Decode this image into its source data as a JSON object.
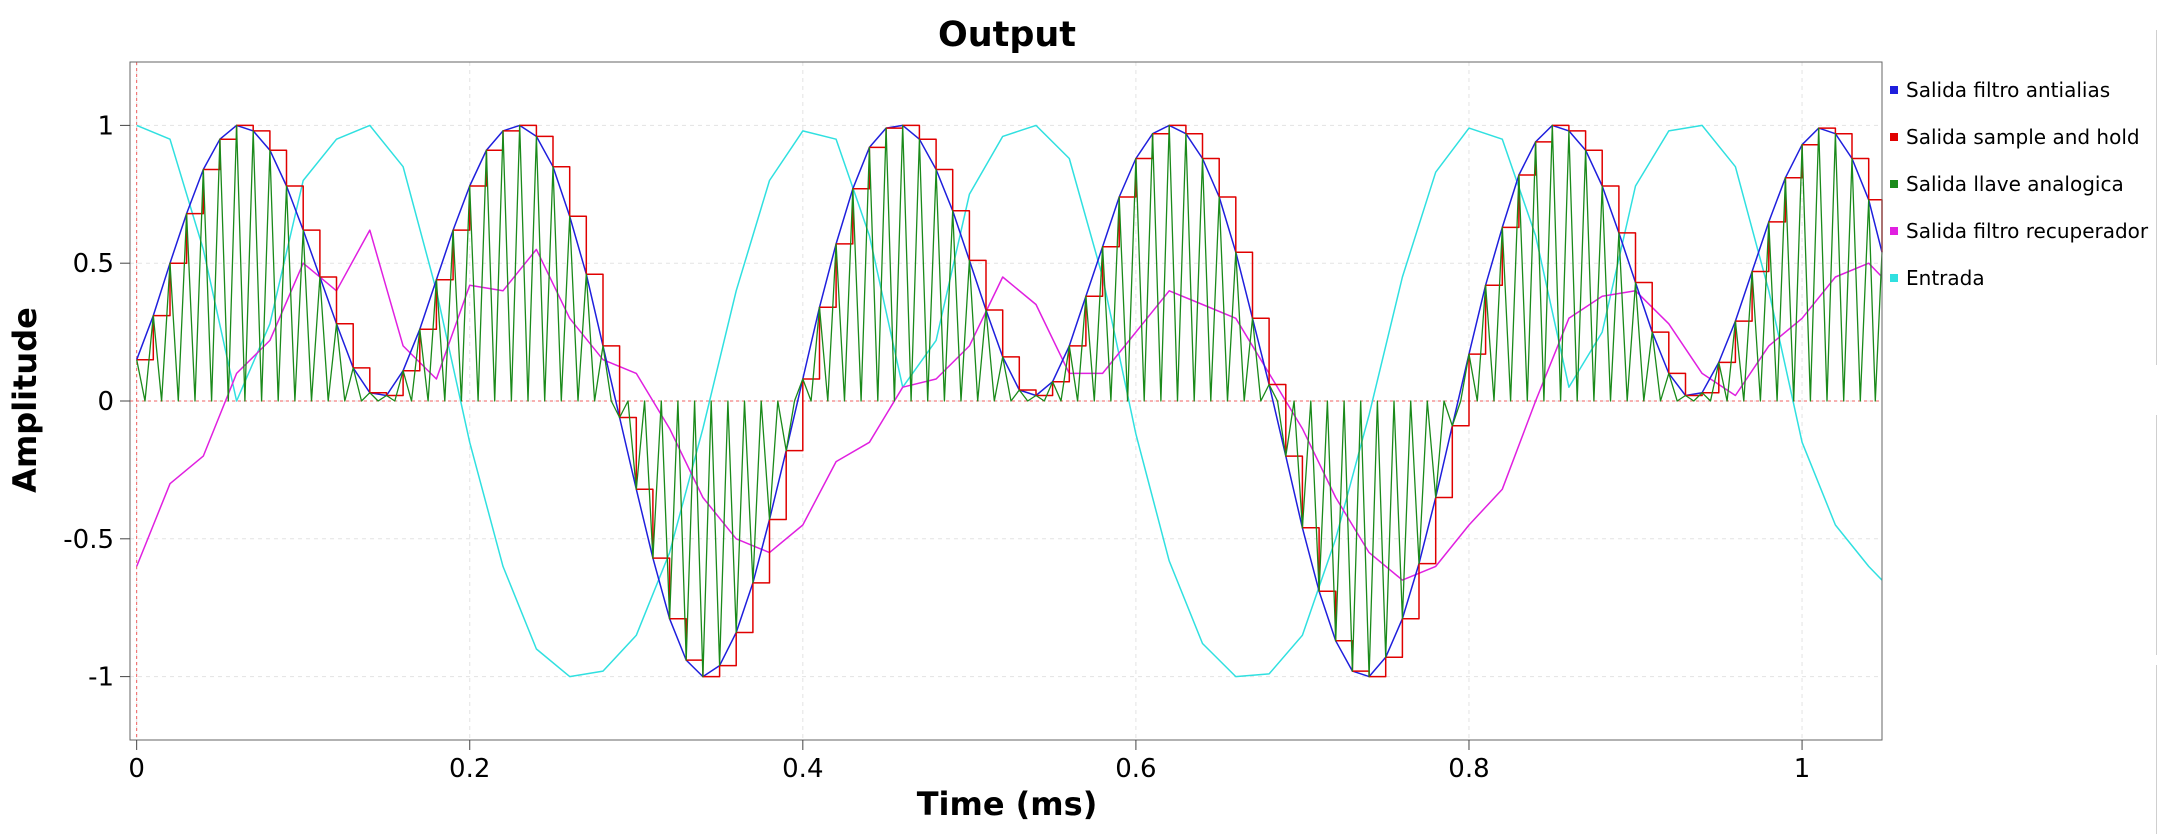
{
  "chart_data": {
    "type": "line",
    "title": "Output",
    "xlabel": "Time (ms)",
    "ylabel": "Amplitude",
    "xlim": [
      -0.004,
      1.048
    ],
    "ylim": [
      -1.23,
      1.23
    ],
    "x_ticks": [
      0,
      0.2,
      0.4,
      0.6,
      0.8,
      1
    ],
    "x_tick_labels": [
      "0",
      "0.2",
      "0.4",
      "0.6",
      "0.8",
      "1"
    ],
    "y_ticks": [
      1,
      0.5,
      0,
      -0.5,
      -1
    ],
    "y_tick_labels": [
      "1",
      "0.5",
      "0",
      "-0.5",
      "-1"
    ],
    "grid": true,
    "legend_position": "right",
    "series": [
      {
        "name": "Salida filtro antialias",
        "color": "#1f1fdd",
        "x": [
          0,
          0.01,
          0.02,
          0.03,
          0.04,
          0.05,
          0.06,
          0.07,
          0.08,
          0.09,
          0.1,
          0.11,
          0.12,
          0.13,
          0.14,
          0.15,
          0.16,
          0.17,
          0.18,
          0.19,
          0.2,
          0.21,
          0.22,
          0.23,
          0.24,
          0.25,
          0.26,
          0.27,
          0.28,
          0.29,
          0.3,
          0.31,
          0.32,
          0.33,
          0.34,
          0.35,
          0.36,
          0.37,
          0.38,
          0.39,
          0.4,
          0.41,
          0.42,
          0.43,
          0.44,
          0.45,
          0.46,
          0.47,
          0.48,
          0.49,
          0.5,
          0.51,
          0.52,
          0.53,
          0.54,
          0.55,
          0.56,
          0.57,
          0.58,
          0.59,
          0.6,
          0.61,
          0.62,
          0.63,
          0.64,
          0.65,
          0.66,
          0.67,
          0.68,
          0.69,
          0.7,
          0.71,
          0.72,
          0.73,
          0.74,
          0.75,
          0.76,
          0.77,
          0.78,
          0.79,
          0.8,
          0.81,
          0.82,
          0.83,
          0.84,
          0.85,
          0.86,
          0.87,
          0.88,
          0.89,
          0.9,
          0.91,
          0.92,
          0.93,
          0.94,
          0.95,
          0.96,
          0.97,
          0.98,
          0.99,
          1,
          1.01,
          1.02,
          1.03,
          1.04,
          1.048
        ],
        "y": [
          0.15,
          0.31,
          0.5,
          0.68,
          0.84,
          0.95,
          1,
          0.98,
          0.91,
          0.78,
          0.62,
          0.45,
          0.28,
          0.12,
          0.03,
          0.02,
          0.11,
          0.26,
          0.44,
          0.62,
          0.78,
          0.91,
          0.98,
          1,
          0.96,
          0.85,
          0.67,
          0.46,
          0.2,
          -0.06,
          -0.32,
          -0.57,
          -0.79,
          -0.94,
          -1,
          -0.96,
          -0.84,
          -0.66,
          -0.43,
          -0.18,
          0.08,
          0.34,
          0.57,
          0.77,
          0.92,
          0.99,
          1,
          0.95,
          0.84,
          0.69,
          0.51,
          0.33,
          0.16,
          0.04,
          0.02,
          0.07,
          0.2,
          0.38,
          0.56,
          0.74,
          0.88,
          0.97,
          1,
          0.97,
          0.88,
          0.74,
          0.54,
          0.3,
          0.06,
          -0.2,
          -0.46,
          -0.69,
          -0.87,
          -0.98,
          -1,
          -0.93,
          -0.79,
          -0.59,
          -0.35,
          -0.09,
          0.17,
          0.42,
          0.63,
          0.82,
          0.94,
          1,
          0.98,
          0.91,
          0.78,
          0.61,
          0.43,
          0.25,
          0.1,
          0.02,
          0.03,
          0.14,
          0.29,
          0.47,
          0.65,
          0.81,
          0.93,
          0.99,
          0.97,
          0.88,
          0.73,
          0.54
        ]
      },
      {
        "name": "Salida sample and hold",
        "color": "#e00000",
        "x": [
          0,
          0.01,
          0.02,
          0.03,
          0.04,
          0.05,
          0.06,
          0.07,
          0.08,
          0.09,
          0.1,
          0.11,
          0.12,
          0.13,
          0.14,
          0.15,
          0.16,
          0.17,
          0.18,
          0.19,
          0.2,
          0.21,
          0.22,
          0.23,
          0.24,
          0.25,
          0.26,
          0.27,
          0.28,
          0.29,
          0.3,
          0.31,
          0.32,
          0.33,
          0.34,
          0.35,
          0.36,
          0.37,
          0.38,
          0.39,
          0.4,
          0.41,
          0.42,
          0.43,
          0.44,
          0.45,
          0.46,
          0.47,
          0.48,
          0.49,
          0.5,
          0.51,
          0.52,
          0.53,
          0.54,
          0.55,
          0.56,
          0.57,
          0.58,
          0.59,
          0.6,
          0.61,
          0.62,
          0.63,
          0.64,
          0.65,
          0.66,
          0.67,
          0.68,
          0.69,
          0.7,
          0.71,
          0.72,
          0.73,
          0.74,
          0.75,
          0.76,
          0.77,
          0.78,
          0.79,
          0.8,
          0.81,
          0.82,
          0.83,
          0.84,
          0.85,
          0.86,
          0.87,
          0.88,
          0.89,
          0.9,
          0.91,
          0.92,
          0.93,
          0.94,
          0.95,
          0.96,
          0.97,
          0.98,
          0.99,
          1,
          1.01,
          1.02,
          1.03,
          1.04,
          1.048
        ],
        "y": [
          0.15,
          0.31,
          0.5,
          0.68,
          0.84,
          0.95,
          1,
          0.98,
          0.91,
          0.78,
          0.62,
          0.45,
          0.28,
          0.12,
          0.03,
          0.02,
          0.11,
          0.26,
          0.44,
          0.62,
          0.78,
          0.91,
          0.98,
          1,
          0.96,
          0.85,
          0.67,
          0.46,
          0.2,
          -0.06,
          -0.32,
          -0.57,
          -0.79,
          -0.94,
          -1,
          -0.96,
          -0.84,
          -0.66,
          -0.43,
          -0.18,
          0.08,
          0.34,
          0.57,
          0.77,
          0.92,
          0.99,
          1,
          0.95,
          0.84,
          0.69,
          0.51,
          0.33,
          0.16,
          0.04,
          0.02,
          0.07,
          0.2,
          0.38,
          0.56,
          0.74,
          0.88,
          0.97,
          1,
          0.97,
          0.88,
          0.74,
          0.54,
          0.3,
          0.06,
          -0.2,
          -0.46,
          -0.69,
          -0.87,
          -0.98,
          -1,
          -0.93,
          -0.79,
          -0.59,
          -0.35,
          -0.09,
          0.17,
          0.42,
          0.63,
          0.82,
          0.94,
          1,
          0.98,
          0.91,
          0.78,
          0.61,
          0.43,
          0.25,
          0.1,
          0.02,
          0.03,
          0.14,
          0.29,
          0.47,
          0.65,
          0.81,
          0.93,
          0.99,
          0.97,
          0.88,
          0.73,
          0.54
        ]
      },
      {
        "name": "Salida llave analogica",
        "color": "#1a8a1a",
        "x": [
          0,
          0.01,
          0.02,
          0.03,
          0.04,
          0.05,
          0.06,
          0.07,
          0.08,
          0.09,
          0.1,
          0.11,
          0.12,
          0.13,
          0.14,
          0.15,
          0.16,
          0.17,
          0.18,
          0.19,
          0.2,
          0.21,
          0.22,
          0.23,
          0.24,
          0.25,
          0.26,
          0.27,
          0.28,
          0.29,
          0.3,
          0.31,
          0.32,
          0.33,
          0.34,
          0.35,
          0.36,
          0.37,
          0.38,
          0.39,
          0.4,
          0.41,
          0.42,
          0.43,
          0.44,
          0.45,
          0.46,
          0.47,
          0.48,
          0.49,
          0.5,
          0.51,
          0.52,
          0.53,
          0.54,
          0.55,
          0.56,
          0.57,
          0.58,
          0.59,
          0.6,
          0.61,
          0.62,
          0.63,
          0.64,
          0.65,
          0.66,
          0.67,
          0.68,
          0.69,
          0.7,
          0.71,
          0.72,
          0.73,
          0.74,
          0.75,
          0.76,
          0.77,
          0.78,
          0.79,
          0.8,
          0.81,
          0.82,
          0.83,
          0.84,
          0.85,
          0.86,
          0.87,
          0.88,
          0.89,
          0.9,
          0.91,
          0.92,
          0.93,
          0.94,
          0.95,
          0.96,
          0.97,
          0.98,
          0.99,
          1,
          1.01,
          1.02,
          1.03,
          1.04,
          1.048
        ],
        "y": [
          0.15,
          0.31,
          0.5,
          0.68,
          0.84,
          0.95,
          1,
          0.98,
          0.91,
          0.78,
          0.62,
          0.45,
          0.28,
          0.12,
          0.03,
          0.02,
          0.11,
          0.26,
          0.44,
          0.62,
          0.78,
          0.91,
          0.98,
          1,
          0.96,
          0.85,
          0.67,
          0.46,
          0.2,
          -0.06,
          -0.32,
          -0.57,
          -0.79,
          -0.94,
          -1,
          -0.96,
          -0.84,
          -0.66,
          -0.43,
          -0.18,
          0.08,
          0.34,
          0.57,
          0.77,
          0.92,
          0.99,
          1,
          0.95,
          0.84,
          0.69,
          0.51,
          0.33,
          0.16,
          0.04,
          0.02,
          0.07,
          0.2,
          0.38,
          0.56,
          0.74,
          0.88,
          0.97,
          1,
          0.97,
          0.88,
          0.74,
          0.54,
          0.3,
          0.06,
          -0.2,
          -0.46,
          -0.69,
          -0.87,
          -0.98,
          -1,
          -0.93,
          -0.79,
          -0.59,
          -0.35,
          -0.09,
          0.17,
          0.42,
          0.63,
          0.82,
          0.94,
          1,
          0.98,
          0.91,
          0.78,
          0.61,
          0.43,
          0.25,
          0.1,
          0.02,
          0.03,
          0.14,
          0.29,
          0.47,
          0.65,
          0.81,
          0.93,
          0.99,
          0.97,
          0.88,
          0.73,
          0.54
        ]
      },
      {
        "name": "Salida filtro recuperador",
        "color": "#e020e0",
        "x": [
          0,
          0.02,
          0.04,
          0.06,
          0.08,
          0.1,
          0.12,
          0.14,
          0.16,
          0.18,
          0.2,
          0.22,
          0.24,
          0.26,
          0.28,
          0.3,
          0.32,
          0.34,
          0.36,
          0.38,
          0.4,
          0.42,
          0.44,
          0.46,
          0.48,
          0.5,
          0.52,
          0.54,
          0.56,
          0.58,
          0.6,
          0.62,
          0.64,
          0.66,
          0.68,
          0.7,
          0.72,
          0.74,
          0.76,
          0.78,
          0.8,
          0.82,
          0.84,
          0.86,
          0.88,
          0.9,
          0.92,
          0.94,
          0.96,
          0.98,
          1,
          1.02,
          1.04,
          1.048
        ],
        "y": [
          -0.6,
          -0.3,
          -0.2,
          0.1,
          0.22,
          0.5,
          0.4,
          0.62,
          0.2,
          0.08,
          0.42,
          0.4,
          0.55,
          0.3,
          0.15,
          0.1,
          -0.1,
          -0.35,
          -0.5,
          -0.55,
          -0.45,
          -0.22,
          -0.15,
          0.05,
          0.08,
          0.2,
          0.45,
          0.35,
          0.1,
          0.1,
          0.25,
          0.4,
          0.35,
          0.3,
          0.1,
          -0.1,
          -0.35,
          -0.55,
          -0.65,
          -0.6,
          -0.45,
          -0.32,
          0.0,
          0.3,
          0.38,
          0.4,
          0.28,
          0.1,
          0.02,
          0.2,
          0.3,
          0.45,
          0.5,
          0.45
        ]
      },
      {
        "name": "Entrada",
        "color": "#30e0e0",
        "x": [
          0,
          0.02,
          0.04,
          0.06,
          0.08,
          0.1,
          0.12,
          0.14,
          0.16,
          0.18,
          0.2,
          0.22,
          0.24,
          0.26,
          0.28,
          0.3,
          0.32,
          0.34,
          0.36,
          0.38,
          0.4,
          0.42,
          0.44,
          0.46,
          0.48,
          0.5,
          0.52,
          0.54,
          0.56,
          0.58,
          0.6,
          0.62,
          0.64,
          0.66,
          0.68,
          0.7,
          0.72,
          0.74,
          0.76,
          0.78,
          0.8,
          0.82,
          0.84,
          0.86,
          0.88,
          0.9,
          0.92,
          0.94,
          0.96,
          0.98,
          1,
          1.02,
          1.04,
          1.048
        ],
        "y": [
          1,
          0.95,
          0.55,
          0.0,
          0.28,
          0.8,
          0.95,
          1,
          0.85,
          0.4,
          -0.15,
          -0.6,
          -0.9,
          -1,
          -0.98,
          -0.85,
          -0.55,
          -0.1,
          0.4,
          0.8,
          0.98,
          0.95,
          0.6,
          0.05,
          0.22,
          0.75,
          0.96,
          1,
          0.88,
          0.45,
          -0.12,
          -0.58,
          -0.88,
          -1,
          -0.99,
          -0.85,
          -0.5,
          -0.05,
          0.45,
          0.83,
          0.99,
          0.95,
          0.6,
          0.05,
          0.25,
          0.78,
          0.98,
          1,
          0.85,
          0.4,
          -0.15,
          -0.45,
          -0.6,
          -0.65
        ]
      }
    ]
  }
}
